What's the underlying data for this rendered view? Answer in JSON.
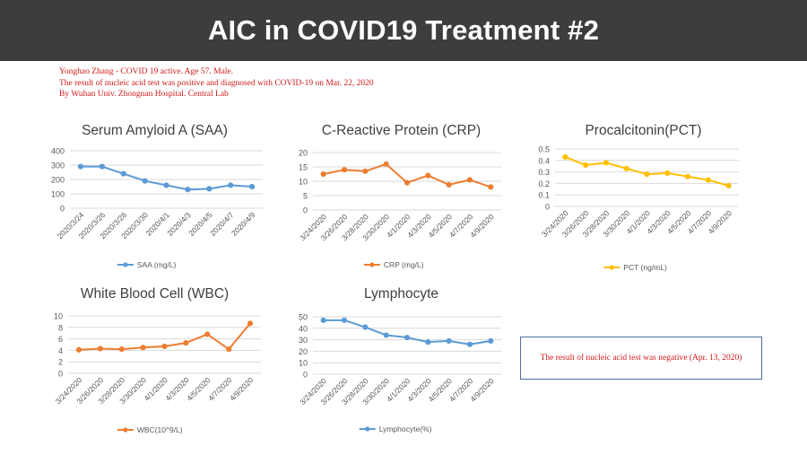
{
  "header": {
    "title": "AIC in COVID19 Treatment  #2"
  },
  "intro": {
    "lines": [
      "Yonghao Zhang - COVID 19 active. Age 57. Male.",
      "The result of nucleic acid test was positive and diagnosed with COVID-19 on Mar. 22, 2020",
      "By Wuhan Univ. Zhongnan Hospital. Central Lab"
    ]
  },
  "note": {
    "text": "The result of nucleic acid test was negative (Apr. 13, 2020)"
  },
  "colors": {
    "blue": "#5b9bd5",
    "orange": "#ed7d31",
    "yellow": "#ffc000",
    "grid": "#d9d9d9",
    "axis_text": "#595959"
  },
  "chart_data": [
    {
      "id": "saa",
      "type": "line",
      "title": "Serum Amyloid A (SAA)",
      "categories": [
        "2020/3/24",
        "2020/3/26",
        "2020/3/28",
        "2020/3/30",
        "2020/4/1",
        "2020/4/3",
        "2020/4/5",
        "2020/4/7",
        "2020/4/9"
      ],
      "series": [
        {
          "name": "SAA  (mg/L)",
          "values": [
            290,
            290,
            240,
            190,
            160,
            130,
            135,
            160,
            150
          ],
          "color": "#5b9bd5"
        }
      ],
      "yticks": [
        0,
        100,
        200,
        300,
        400
      ],
      "ylim": [
        0,
        400
      ],
      "legend": "bottom"
    },
    {
      "id": "crp",
      "type": "line",
      "title": "C-Reactive Protein (CRP)",
      "categories": [
        "3/24/2020",
        "3/26/2020",
        "3/28/2020",
        "3/30/2020",
        "4/1/2020",
        "4/3/2020",
        "4/5/2020",
        "4/7/2020",
        "4/9/2020"
      ],
      "series": [
        {
          "name": "CRP  (mg/L)",
          "values": [
            12.5,
            14,
            13.5,
            16,
            9.5,
            12,
            8.8,
            10.5,
            8
          ],
          "color": "#ed7d31"
        }
      ],
      "yticks": [
        0,
        5,
        10,
        15,
        20
      ],
      "ylim": [
        0,
        20
      ],
      "legend": "bottom"
    },
    {
      "id": "pct",
      "type": "line",
      "title": "Procalcitonin(PCT)",
      "categories": [
        "3/24/2020",
        "3/26/2020",
        "3/28/2020",
        "3/30/2020",
        "4/1/2020",
        "4/3/2020",
        "4/5/2020",
        "4/7/2020",
        "4/9/2020"
      ],
      "series": [
        {
          "name": "PCT  (ng/mL)",
          "values": [
            0.43,
            0.36,
            0.38,
            0.33,
            0.28,
            0.29,
            0.26,
            0.23,
            0.18
          ],
          "color": "#ffc000"
        }
      ],
      "yticks": [
        0,
        0.1,
        0.2,
        0.3,
        0.4,
        0.5
      ],
      "ylim": [
        0,
        0.5
      ],
      "legend": "bottom"
    },
    {
      "id": "wbc",
      "type": "line",
      "title": "White Blood Cell (WBC)",
      "categories": [
        "3/24/2020",
        "3/26/2020",
        "3/28/2020",
        "3/30/2020",
        "4/1/2020",
        "4/3/2020",
        "4/5/2020",
        "4/7/2020",
        "4/9/2020"
      ],
      "series": [
        {
          "name": "WBC(10^9/L)",
          "values": [
            4.1,
            4.3,
            4.2,
            4.5,
            4.7,
            5.3,
            6.8,
            4.2,
            8.7
          ],
          "color": "#ed7d31"
        }
      ],
      "yticks": [
        0,
        2,
        4,
        6,
        8,
        10
      ],
      "ylim": [
        0,
        10
      ],
      "legend": "bottom"
    },
    {
      "id": "lym",
      "type": "line",
      "title": "Lymphocyte",
      "categories": [
        "3/24/2020",
        "3/26/2020",
        "3/28/2020",
        "3/30/2020",
        "4/1/2020",
        "4/3/2020",
        "4/5/2020",
        "4/7/2020",
        "4/9/2020"
      ],
      "series": [
        {
          "name": "Lymphocyte(%)",
          "values": [
            47,
            47,
            41,
            34,
            32,
            28,
            29,
            26,
            29
          ],
          "color": "#5b9bd5"
        }
      ],
      "yticks": [
        0,
        10,
        20,
        30,
        40,
        50
      ],
      "ylim": [
        0,
        50
      ],
      "legend": "bottom"
    }
  ]
}
